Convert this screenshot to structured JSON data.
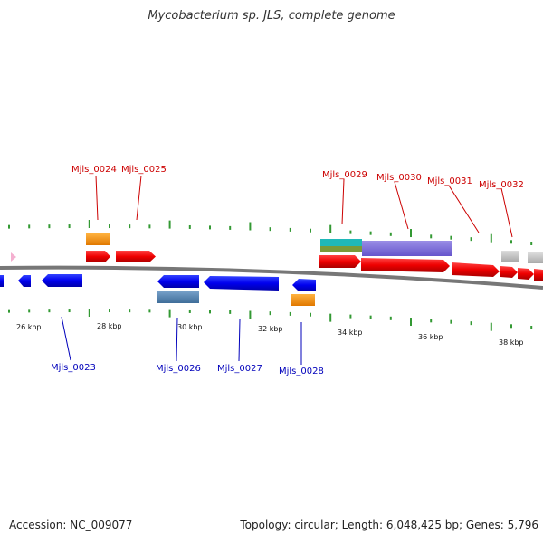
{
  "title": "Mycobacterium sp. JLS, complete genome",
  "footer": {
    "accession": "Accession: NC_009077",
    "summary": "Topology: circular; Length: 6,048,425 bp; Genes: 5,796"
  },
  "colors": {
    "forward_label": "#cc0000",
    "reverse_label": "#0000bb",
    "backbone": "#777777",
    "tick": "#339933"
  },
  "tick_labels": [
    "26 kbp",
    "28 kbp",
    "30 kbp",
    "32 kbp",
    "34 kbp",
    "36 kbp",
    "38 kbp"
  ],
  "forward_genes": [
    "Mjls_0024",
    "Mjls_0025",
    "Mjls_0029",
    "Mjls_0030",
    "Mjls_0031",
    "Mjls_0032"
  ],
  "reverse_genes": [
    "Mjls_0023",
    "Mjls_0026",
    "Mjls_0027",
    "Mjls_0028"
  ]
}
